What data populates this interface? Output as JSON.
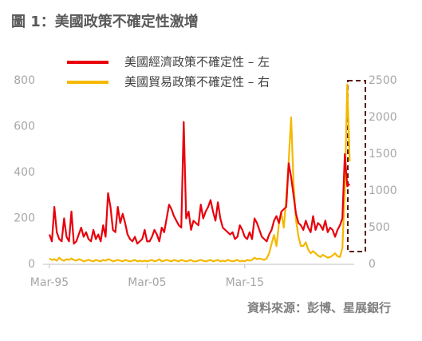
{
  "chart_data": {
    "type": "line",
    "title": "圖 1：美國政策不確定性激增",
    "source": "資料來源：彭博、星展銀行",
    "categories": [
      "Mar-95",
      null,
      null,
      null,
      null,
      null,
      null,
      null,
      null,
      null,
      null,
      null,
      null,
      null,
      null,
      null,
      null,
      null,
      null,
      null,
      null,
      null,
      null,
      null,
      null,
      null,
      null,
      null,
      null,
      null,
      null,
      null,
      null,
      null,
      null,
      null,
      null,
      null,
      null,
      null,
      "Mar-05",
      null,
      null,
      null,
      null,
      null,
      null,
      null,
      null,
      null,
      null,
      null,
      null,
      null,
      null,
      null,
      null,
      null,
      null,
      null,
      null,
      null,
      null,
      null,
      null,
      null,
      null,
      null,
      null,
      null,
      null,
      null,
      null,
      null,
      null,
      null,
      null,
      null,
      null,
      null,
      "Mar-15",
      null,
      null,
      null,
      null,
      null,
      null,
      null,
      null,
      null,
      null,
      null,
      null,
      null,
      null,
      null,
      null,
      null,
      null,
      null,
      null,
      null,
      null,
      null,
      null,
      null,
      null,
      null,
      null,
      null,
      null,
      null,
      null,
      null,
      null,
      null,
      null,
      null,
      null,
      null,
      null,
      null,
      null,
      null
    ],
    "series": [
      {
        "name": "美國經濟政策不確定性 – 左",
        "color": "#e8000b",
        "axis": "y",
        "values": [
          130,
          100,
          250,
          140,
          110,
          100,
          200,
          120,
          100,
          230,
          90,
          100,
          130,
          160,
          120,
          140,
          110,
          100,
          150,
          110,
          130,
          100,
          170,
          120,
          310,
          250,
          150,
          140,
          250,
          180,
          220,
          180,
          130,
          110,
          100,
          120,
          90,
          100,
          110,
          150,
          100,
          100,
          120,
          150,
          130,
          100,
          160,
          140,
          200,
          260,
          240,
          210,
          190,
          170,
          160,
          620,
          200,
          230,
          150,
          190,
          180,
          170,
          260,
          200,
          230,
          250,
          280,
          230,
          190,
          270,
          200,
          160,
          150,
          140,
          130,
          140,
          110,
          120,
          170,
          150,
          120,
          110,
          140,
          110,
          200,
          180,
          150,
          120,
          110,
          100,
          130,
          150,
          190,
          210,
          180,
          230,
          240,
          250,
          440,
          380,
          300,
          220,
          180,
          170,
          150,
          190,
          160,
          140,
          210,
          150,
          180,
          170,
          150,
          190,
          140,
          160,
          150,
          120,
          150,
          170,
          200,
          480,
          340,
          350
        ]
      },
      {
        "name": "美國貿易政策不確定性 – 右",
        "color": "#f5b800",
        "axis": "y2",
        "values": [
          80,
          60,
          70,
          50,
          90,
          60,
          50,
          70,
          60,
          80,
          60,
          50,
          70,
          60,
          40,
          50,
          60,
          50,
          40,
          60,
          50,
          40,
          60,
          50,
          70,
          60,
          40,
          50,
          60,
          50,
          40,
          60,
          50,
          40,
          50,
          60,
          40,
          50,
          40,
          50,
          40,
          50,
          60,
          40,
          50,
          70,
          40,
          50,
          60,
          50,
          40,
          60,
          50,
          40,
          60,
          50,
          40,
          50,
          60,
          40,
          40,
          50,
          60,
          50,
          40,
          50,
          60,
          40,
          50,
          60,
          40,
          50,
          40,
          60,
          50,
          40,
          50,
          60,
          40,
          50,
          40,
          60,
          50,
          60,
          90,
          70,
          80,
          70,
          60,
          80,
          150,
          280,
          400,
          250,
          550,
          700,
          500,
          900,
          1400,
          2000,
          1100,
          600,
          380,
          250,
          250,
          300,
          200,
          150,
          180,
          150,
          120,
          100,
          130,
          110,
          90,
          100,
          120,
          150,
          110,
          100,
          220,
          1000,
          2450,
          1400
        ]
      }
    ],
    "ylim": [
      0,
      800
    ],
    "yticks": [
      0,
      200,
      400,
      600,
      800
    ],
    "y2lim": [
      0,
      2500
    ],
    "y2ticks": [
      0,
      500,
      1000,
      1500,
      2000,
      2500
    ]
  }
}
